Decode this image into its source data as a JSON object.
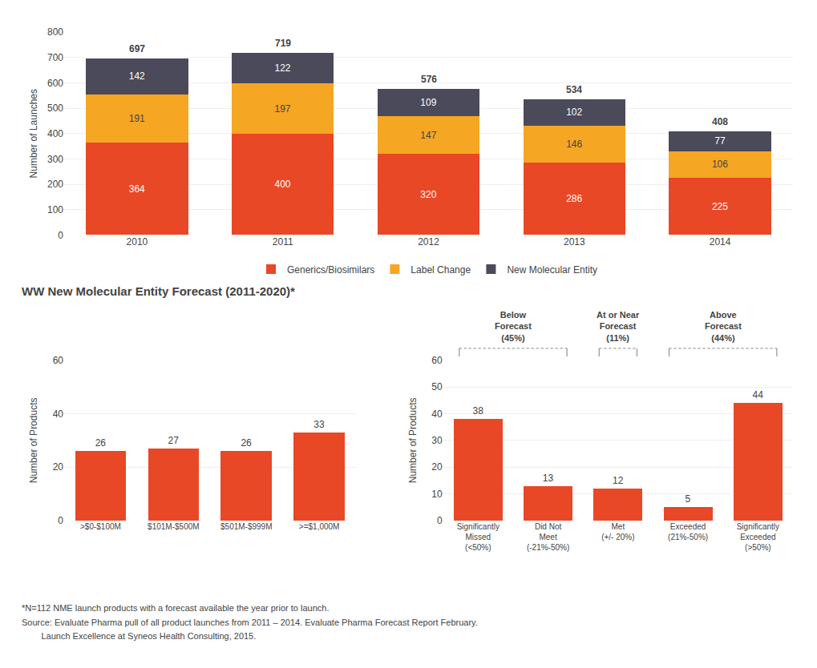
{
  "chart_data": [
    {
      "type": "bar",
      "categories": [
        "2010",
        "2011",
        "2012",
        "2013",
        "2014"
      ],
      "series": [
        {
          "name": "Generics/Biosimilars",
          "color": "#E84826",
          "values": [
            364,
            400,
            320,
            286,
            225
          ]
        },
        {
          "name": "Label Change",
          "color": "#F5A623",
          "values": [
            191,
            197,
            147,
            146,
            106
          ]
        },
        {
          "name": "New Molecular Entity",
          "color": "#4A4A5A",
          "values": [
            142,
            122,
            109,
            102,
            77
          ]
        }
      ],
      "totals": [
        697,
        719,
        576,
        534,
        408
      ],
      "stacked": true,
      "data_labels": true,
      "ylabel": "Number of Launches",
      "ylim": [
        0,
        800
      ],
      "yticks": [
        0,
        100,
        200,
        300,
        400,
        500,
        600,
        700,
        800
      ],
      "grid": true,
      "legend": "bottom"
    },
    {
      "type": "bar",
      "title": "WW New Molecular Entity Forecast (2011-2020)*",
      "categories": [
        ">$0-$100M",
        "$101M-$500M",
        "$501M-$999M",
        ">=$1,000M"
      ],
      "values": [
        26,
        27,
        26,
        33
      ],
      "color": "#E84826",
      "data_labels": true,
      "ylabel": "Number of Products",
      "ylim": [
        0,
        60
      ],
      "yticks": [
        0,
        20,
        40,
        60
      ],
      "grid": true,
      "annotations": [
        "*N=112 NME launch products with a forecast available the year prior to launch.",
        "Source: Evaluate Pharma pull of all product launches from 2011 – 2014. Evaluate Pharma Forecast Report February.",
        "        Launch Excellence at Syneos Health Consulting, 2015."
      ]
    },
    {
      "type": "bar",
      "categories": [
        "Significantly\nMissed\n(<50%)",
        "Did Not\nMeet\n(-21%-50%)",
        "Met\n(+/- 20%)",
        "Exceeded\n(21%-50%)",
        "Significantly\nExceeded\n(>50%)"
      ],
      "values": [
        38,
        13,
        12,
        5,
        44
      ],
      "color": "#E84826",
      "data_labels": true,
      "ylabel": "Number of Products",
      "ylim": [
        0,
        60
      ],
      "yticks": [
        0,
        10,
        20,
        30,
        40,
        50,
        60
      ],
      "grid": true,
      "annotations": [
        "Below\nForecast\n(45%)",
        "At or Near\nForecast\n(11%)",
        "Above\nForecast\n(44%)"
      ]
    }
  ]
}
